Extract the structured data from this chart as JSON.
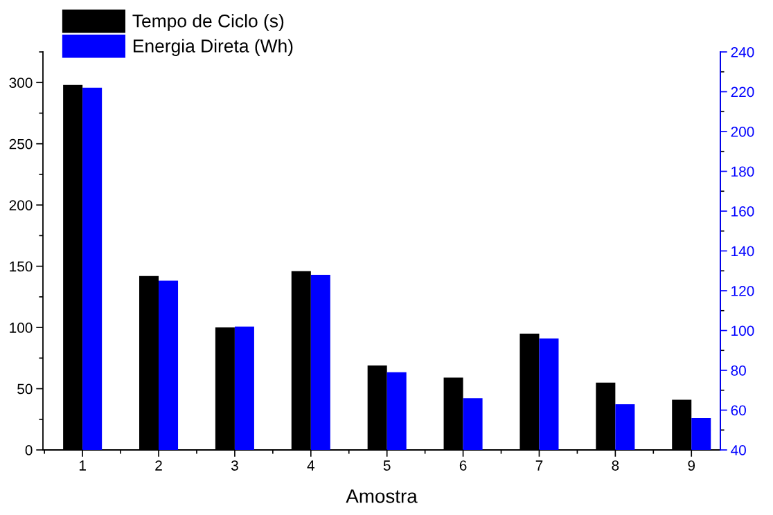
{
  "chart_data": {
    "type": "bar",
    "xlabel": "Amostra",
    "categories": [
      "1",
      "2",
      "3",
      "4",
      "5",
      "6",
      "7",
      "8",
      "9"
    ],
    "series": [
      {
        "name": "Tempo de Ciclo (s)",
        "color": "#000000",
        "values": [
          298,
          142,
          100,
          146,
          69,
          59,
          95,
          55,
          41
        ]
      },
      {
        "name": "Energia Direta (Wh)",
        "color": "#0000ff",
        "axis": "y2",
        "values": [
          222,
          125,
          102,
          128,
          79,
          66,
          96,
          63,
          56
        ]
      }
    ],
    "ylim": [
      0,
      325
    ],
    "yticks": [
      0,
      50,
      100,
      150,
      200,
      250,
      300
    ],
    "y2lim": [
      40,
      240
    ],
    "y2ticks": [
      40,
      60,
      80,
      100,
      120,
      140,
      160,
      180,
      200,
      220,
      240
    ],
    "grid": false,
    "legend": "top left"
  }
}
